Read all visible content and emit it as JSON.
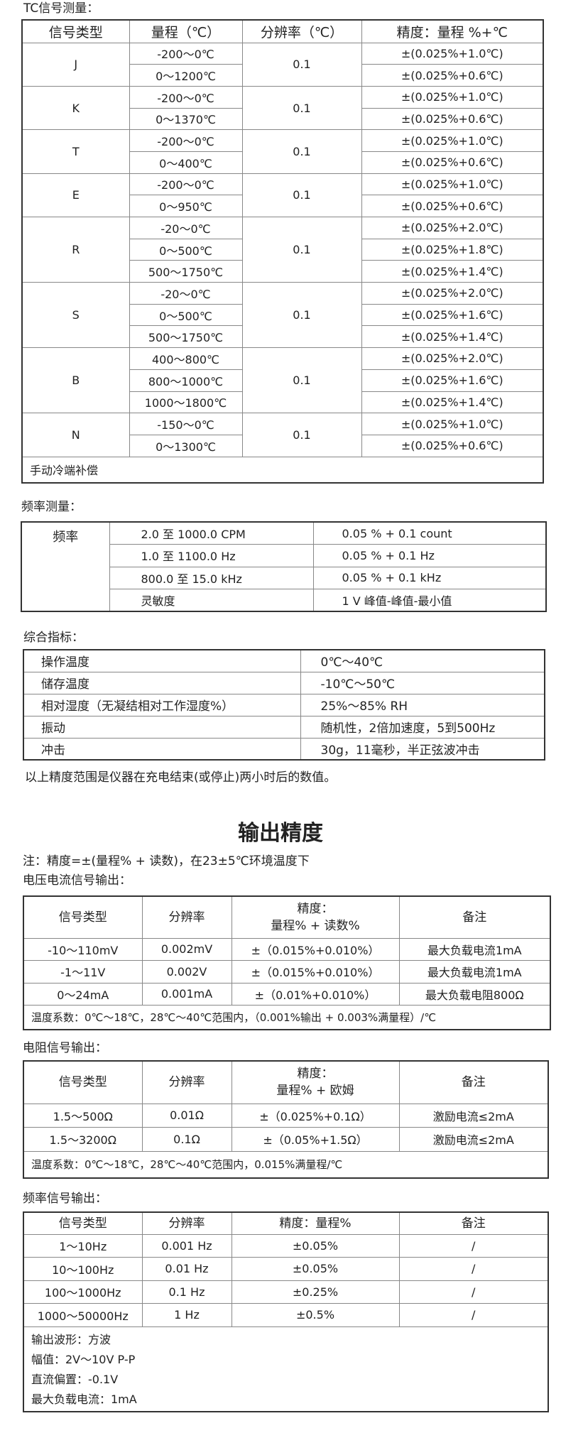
{
  "tc": {
    "title": "TC信号测量：",
    "headers": [
      "信号类型",
      "量程（℃）",
      "分辨率（℃）",
      "精度：量程 %+℃"
    ],
    "groups": [
      {
        "type": "J",
        "resolution": "0.1",
        "rows": [
          [
            "-200～0℃",
            "±(0.025%+1.0℃)"
          ],
          [
            "0～1200℃",
            "±(0.025%+0.6℃)"
          ]
        ]
      },
      {
        "type": "K",
        "resolution": "0.1",
        "rows": [
          [
            "-200～0℃",
            "±(0.025%+1.0℃)"
          ],
          [
            "0～1370℃",
            "±(0.025%+0.6℃)"
          ]
        ]
      },
      {
        "type": "T",
        "resolution": "0.1",
        "rows": [
          [
            "-200～0℃",
            "±(0.025%+1.0℃)"
          ],
          [
            "0～400℃",
            "±(0.025%+0.6℃)"
          ]
        ]
      },
      {
        "type": "E",
        "resolution": "0.1",
        "rows": [
          [
            "-200～0℃",
            "±(0.025%+1.0℃)"
          ],
          [
            "0～950℃",
            "±(0.025%+0.6℃)"
          ]
        ]
      },
      {
        "type": "R",
        "resolution": "0.1",
        "rows": [
          [
            "-20～0℃",
            "±(0.025%+2.0℃)"
          ],
          [
            "0～500℃",
            "±(0.025%+1.8℃)"
          ],
          [
            "500～1750℃",
            "±(0.025%+1.4℃)"
          ]
        ]
      },
      {
        "type": "S",
        "resolution": "0.1",
        "rows": [
          [
            "-20～0℃",
            "±(0.025%+2.0℃)"
          ],
          [
            "0～500℃",
            "±(0.025%+1.6℃)"
          ],
          [
            "500～1750℃",
            "±(0.025%+1.4℃)"
          ]
        ]
      },
      {
        "type": "B",
        "resolution": "0.1",
        "rows": [
          [
            "400～800℃",
            "±(0.025%+2.0℃)"
          ],
          [
            "800～1000℃",
            "±(0.025%+1.6℃)"
          ],
          [
            "1000～1800℃",
            "±(0.025%+1.4℃)"
          ]
        ]
      },
      {
        "type": "N",
        "resolution": "0.1",
        "rows": [
          [
            "-150～0℃",
            "±(0.025%+1.0℃)"
          ],
          [
            "0～1300℃",
            "±(0.025%+0.6℃)"
          ]
        ]
      }
    ],
    "footer": "手动冷端补偿"
  },
  "freq_measure": {
    "title": "频率测量：",
    "label": "频率",
    "rows": [
      [
        "2.0 至 1000.0 CPM",
        "0.05 % + 0.1 count"
      ],
      [
        "1.0 至 1100.0 Hz",
        "0.05 % + 0.1 Hz"
      ],
      [
        "800.0 至 15.0 kHz",
        "0.05 % + 0.1 kHz"
      ],
      [
        "灵敏度",
        "1 V 峰值-峰值-最小值"
      ]
    ]
  },
  "general": {
    "title": "综合指标：",
    "rows": [
      [
        "操作温度",
        "0℃～40℃"
      ],
      [
        "储存温度",
        "-10℃～50℃"
      ],
      [
        "相对湿度（无凝结相对工作湿度%）",
        "25%～85% RH"
      ],
      [
        "振动",
        "随机性，2倍加速度，5到500Hz"
      ],
      [
        "冲击",
        "30g，11毫秒，半正弦波冲击"
      ]
    ],
    "note": "以上精度范围是仪器在充电结束(或停止)两小时后的数值。"
  },
  "output": {
    "heading": "输出精度",
    "note": "注：精度=±(量程% + 读数)，在23±5℃环境温度下",
    "vi": {
      "title": "电压电流信号输出：",
      "headers": [
        "信号类型",
        "分辨率",
        "精度：\n量程% + 读数%",
        "备注"
      ],
      "rows": [
        [
          "-10～110mV",
          "0.002mV",
          "±（0.015%+0.010%）",
          "最大负载电流1mA"
        ],
        [
          "-1～11V",
          "0.002V",
          "±（0.015%+0.010%）",
          "最大负载电流1mA"
        ],
        [
          "0～24mA",
          "0.001mA",
          "±（0.01%+0.010%）",
          "最大负载电阻800Ω"
        ]
      ],
      "footer": "温度系数：0℃～18℃，28℃～40℃范围内，（0.001%输出 + 0.003%满量程）/℃"
    },
    "res": {
      "title": "电阻信号输出：",
      "headers": [
        "信号类型",
        "分辨率",
        "精度：\n量程%  +  欧姆",
        "备注"
      ],
      "rows": [
        [
          "1.5～500Ω",
          "0.01Ω",
          "±（0.025%+0.1Ω）",
          "激励电流≤2mA"
        ],
        [
          "1.5～3200Ω",
          "0.1Ω",
          "±（0.05%+1.5Ω）",
          "激励电流≤2mA"
        ]
      ],
      "footer": "温度系数：0℃～18℃，28℃～40℃范围内，0.015%满量程/℃"
    },
    "freq": {
      "title": "频率信号输出：",
      "headers": [
        "信号类型",
        "分辨率",
        "精度：量程%",
        "备注"
      ],
      "rows": [
        [
          "1～10Hz",
          "0.001 Hz",
          "±0.05%",
          "/"
        ],
        [
          "10～100Hz",
          "0.01 Hz",
          "±0.05%",
          "/"
        ],
        [
          "100～1000Hz",
          "0.1 Hz",
          "±0.25%",
          "/"
        ],
        [
          "1000～50000Hz",
          "1 Hz",
          "±0.5%",
          "/"
        ]
      ],
      "footer_lines": [
        "输出波形：方波",
        "幅值：2V～10V  P-P",
        "直流偏置：-0.1V",
        "最大负载电流：1mA"
      ]
    }
  }
}
